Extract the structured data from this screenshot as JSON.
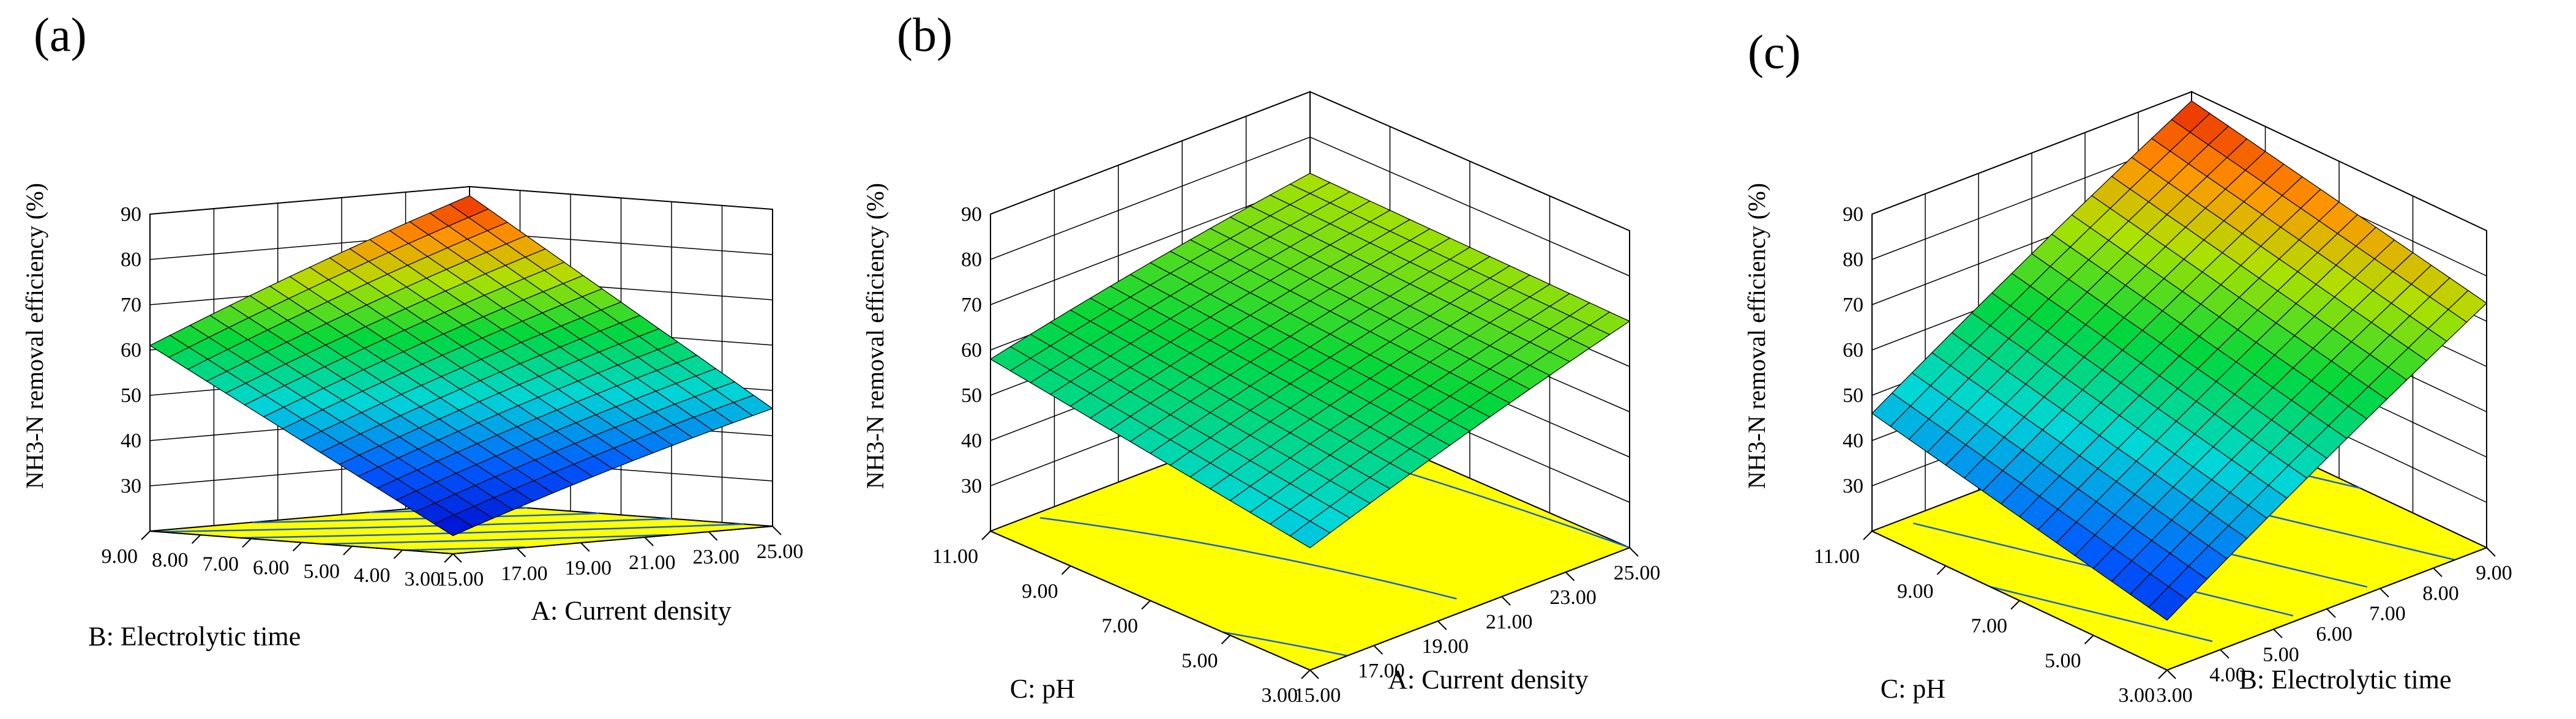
{
  "chart_data": [
    {
      "type": "surface",
      "panel": "(a)",
      "zlabel": "NH3-N removal efficiency (%)",
      "xlabel": "A: Current density",
      "ylabel": "B: Electrolytic time",
      "x_ticks": [
        "15.00",
        "17.00",
        "19.00",
        "21.00",
        "23.00",
        "25.00"
      ],
      "y_ticks": [
        "3.00",
        "4.00",
        "5.00",
        "6.00",
        "7.00",
        "8.00",
        "9.00"
      ],
      "z_ticks": [
        "30",
        "40",
        "50",
        "60",
        "70",
        "80",
        "90"
      ],
      "xlim": [
        15,
        25
      ],
      "ylim": [
        3,
        9
      ],
      "zlim": [
        20,
        90
      ],
      "corners": {
        "x_min_y_min": 24,
        "x_max_y_min": 46,
        "x_min_y_max": 61,
        "x_max_y_max": 88
      }
    },
    {
      "type": "surface",
      "panel": "(b)",
      "zlabel": "NH3-N removal efficiency (%)",
      "xlabel": "A: Current density",
      "ylabel": "C: pH",
      "x_ticks": [
        "15.00",
        "17.00",
        "19.00",
        "21.00",
        "23.00",
        "25.00"
      ],
      "y_ticks": [
        "3.00",
        "5.00",
        "7.00",
        "9.00",
        "11.00"
      ],
      "z_ticks": [
        "30",
        "40",
        "50",
        "60",
        "70",
        "80",
        "90"
      ],
      "xlim": [
        15,
        25
      ],
      "ylim": [
        3,
        11
      ],
      "zlim": [
        20,
        90
      ],
      "corners": {
        "x_min_y_min": 47,
        "x_max_y_min": 70,
        "x_min_y_max": 58,
        "x_max_y_max": 72
      }
    },
    {
      "type": "surface",
      "panel": "(c)",
      "zlabel": "NH3-N removal efficiency (%)",
      "xlabel": "B: Electrolytic time",
      "ylabel": "C: pH",
      "x_ticks": [
        "3.00",
        "4.00",
        "5.00",
        "6.00",
        "7.00",
        "8.00",
        "9.00"
      ],
      "y_ticks": [
        "3.00",
        "5.00",
        "7.00",
        "9.00",
        "11.00"
      ],
      "z_ticks": [
        "30",
        "40",
        "50",
        "60",
        "70",
        "80",
        "90"
      ],
      "xlim": [
        3,
        9
      ],
      "ylim": [
        3,
        11
      ],
      "zlim": [
        20,
        90
      ],
      "corners": {
        "x_min_y_min": 31,
        "x_max_y_min": 74,
        "x_min_y_max": 46,
        "x_max_y_max": 88
      }
    }
  ]
}
